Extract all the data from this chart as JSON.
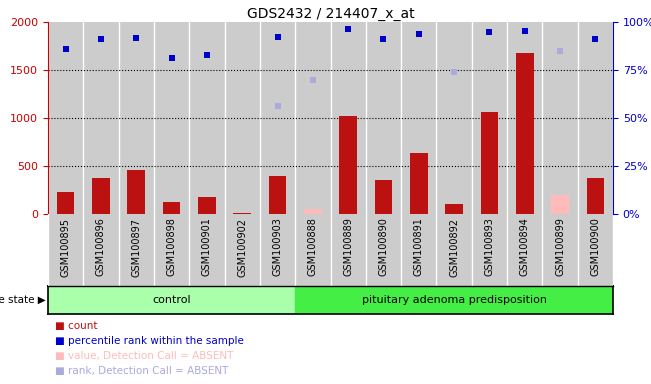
{
  "title": "GDS2432 / 214407_x_at",
  "samples": [
    "GSM100895",
    "GSM100896",
    "GSM100897",
    "GSM100898",
    "GSM100901",
    "GSM100902",
    "GSM100903",
    "GSM100888",
    "GSM100889",
    "GSM100890",
    "GSM100891",
    "GSM100892",
    "GSM100893",
    "GSM100894",
    "GSM100899",
    "GSM100900"
  ],
  "count_values": [
    230,
    370,
    460,
    130,
    175,
    15,
    400,
    55,
    1020,
    350,
    640,
    100,
    1060,
    1680,
    200,
    380
  ],
  "count_absent": [
    false,
    false,
    false,
    false,
    false,
    false,
    false,
    true,
    false,
    false,
    false,
    false,
    false,
    false,
    true,
    false
  ],
  "rank_values": [
    1720,
    1820,
    1830,
    1620,
    1660,
    null,
    1840,
    null,
    1930,
    1820,
    1870,
    1480,
    1900,
    1910,
    1700,
    1820
  ],
  "rank_absent": [
    false,
    false,
    false,
    false,
    false,
    false,
    false,
    false,
    false,
    false,
    false,
    false,
    false,
    false,
    false,
    false
  ],
  "rank_absent_values": [
    null,
    null,
    null,
    null,
    null,
    null,
    1130,
    1400,
    null,
    null,
    null,
    1480,
    null,
    null,
    1700,
    null
  ],
  "n_control": 7,
  "n_pituitary": 9,
  "ylim_left": [
    0,
    2000
  ],
  "ylim_right": [
    0,
    100
  ],
  "yticks_left": [
    0,
    500,
    1000,
    1500,
    2000
  ],
  "yticks_right": [
    0,
    25,
    50,
    75,
    100
  ],
  "yticklabels_right": [
    "0%",
    "25%",
    "50%",
    "75%",
    "100%"
  ],
  "bar_color_present": "#bb1111",
  "bar_color_absent": "#ffbbbb",
  "rank_color_present": "#0000cc",
  "rank_color_absent": "#aaaadd",
  "control_color": "#aaffaa",
  "pituitary_color": "#44ee44",
  "background_bar_color": "#cccccc",
  "xlabel_color": "#cc0000",
  "ylabel_right_color": "#0000cc",
  "strip_border_color": "#000000",
  "dotted_line_color": "#000000"
}
